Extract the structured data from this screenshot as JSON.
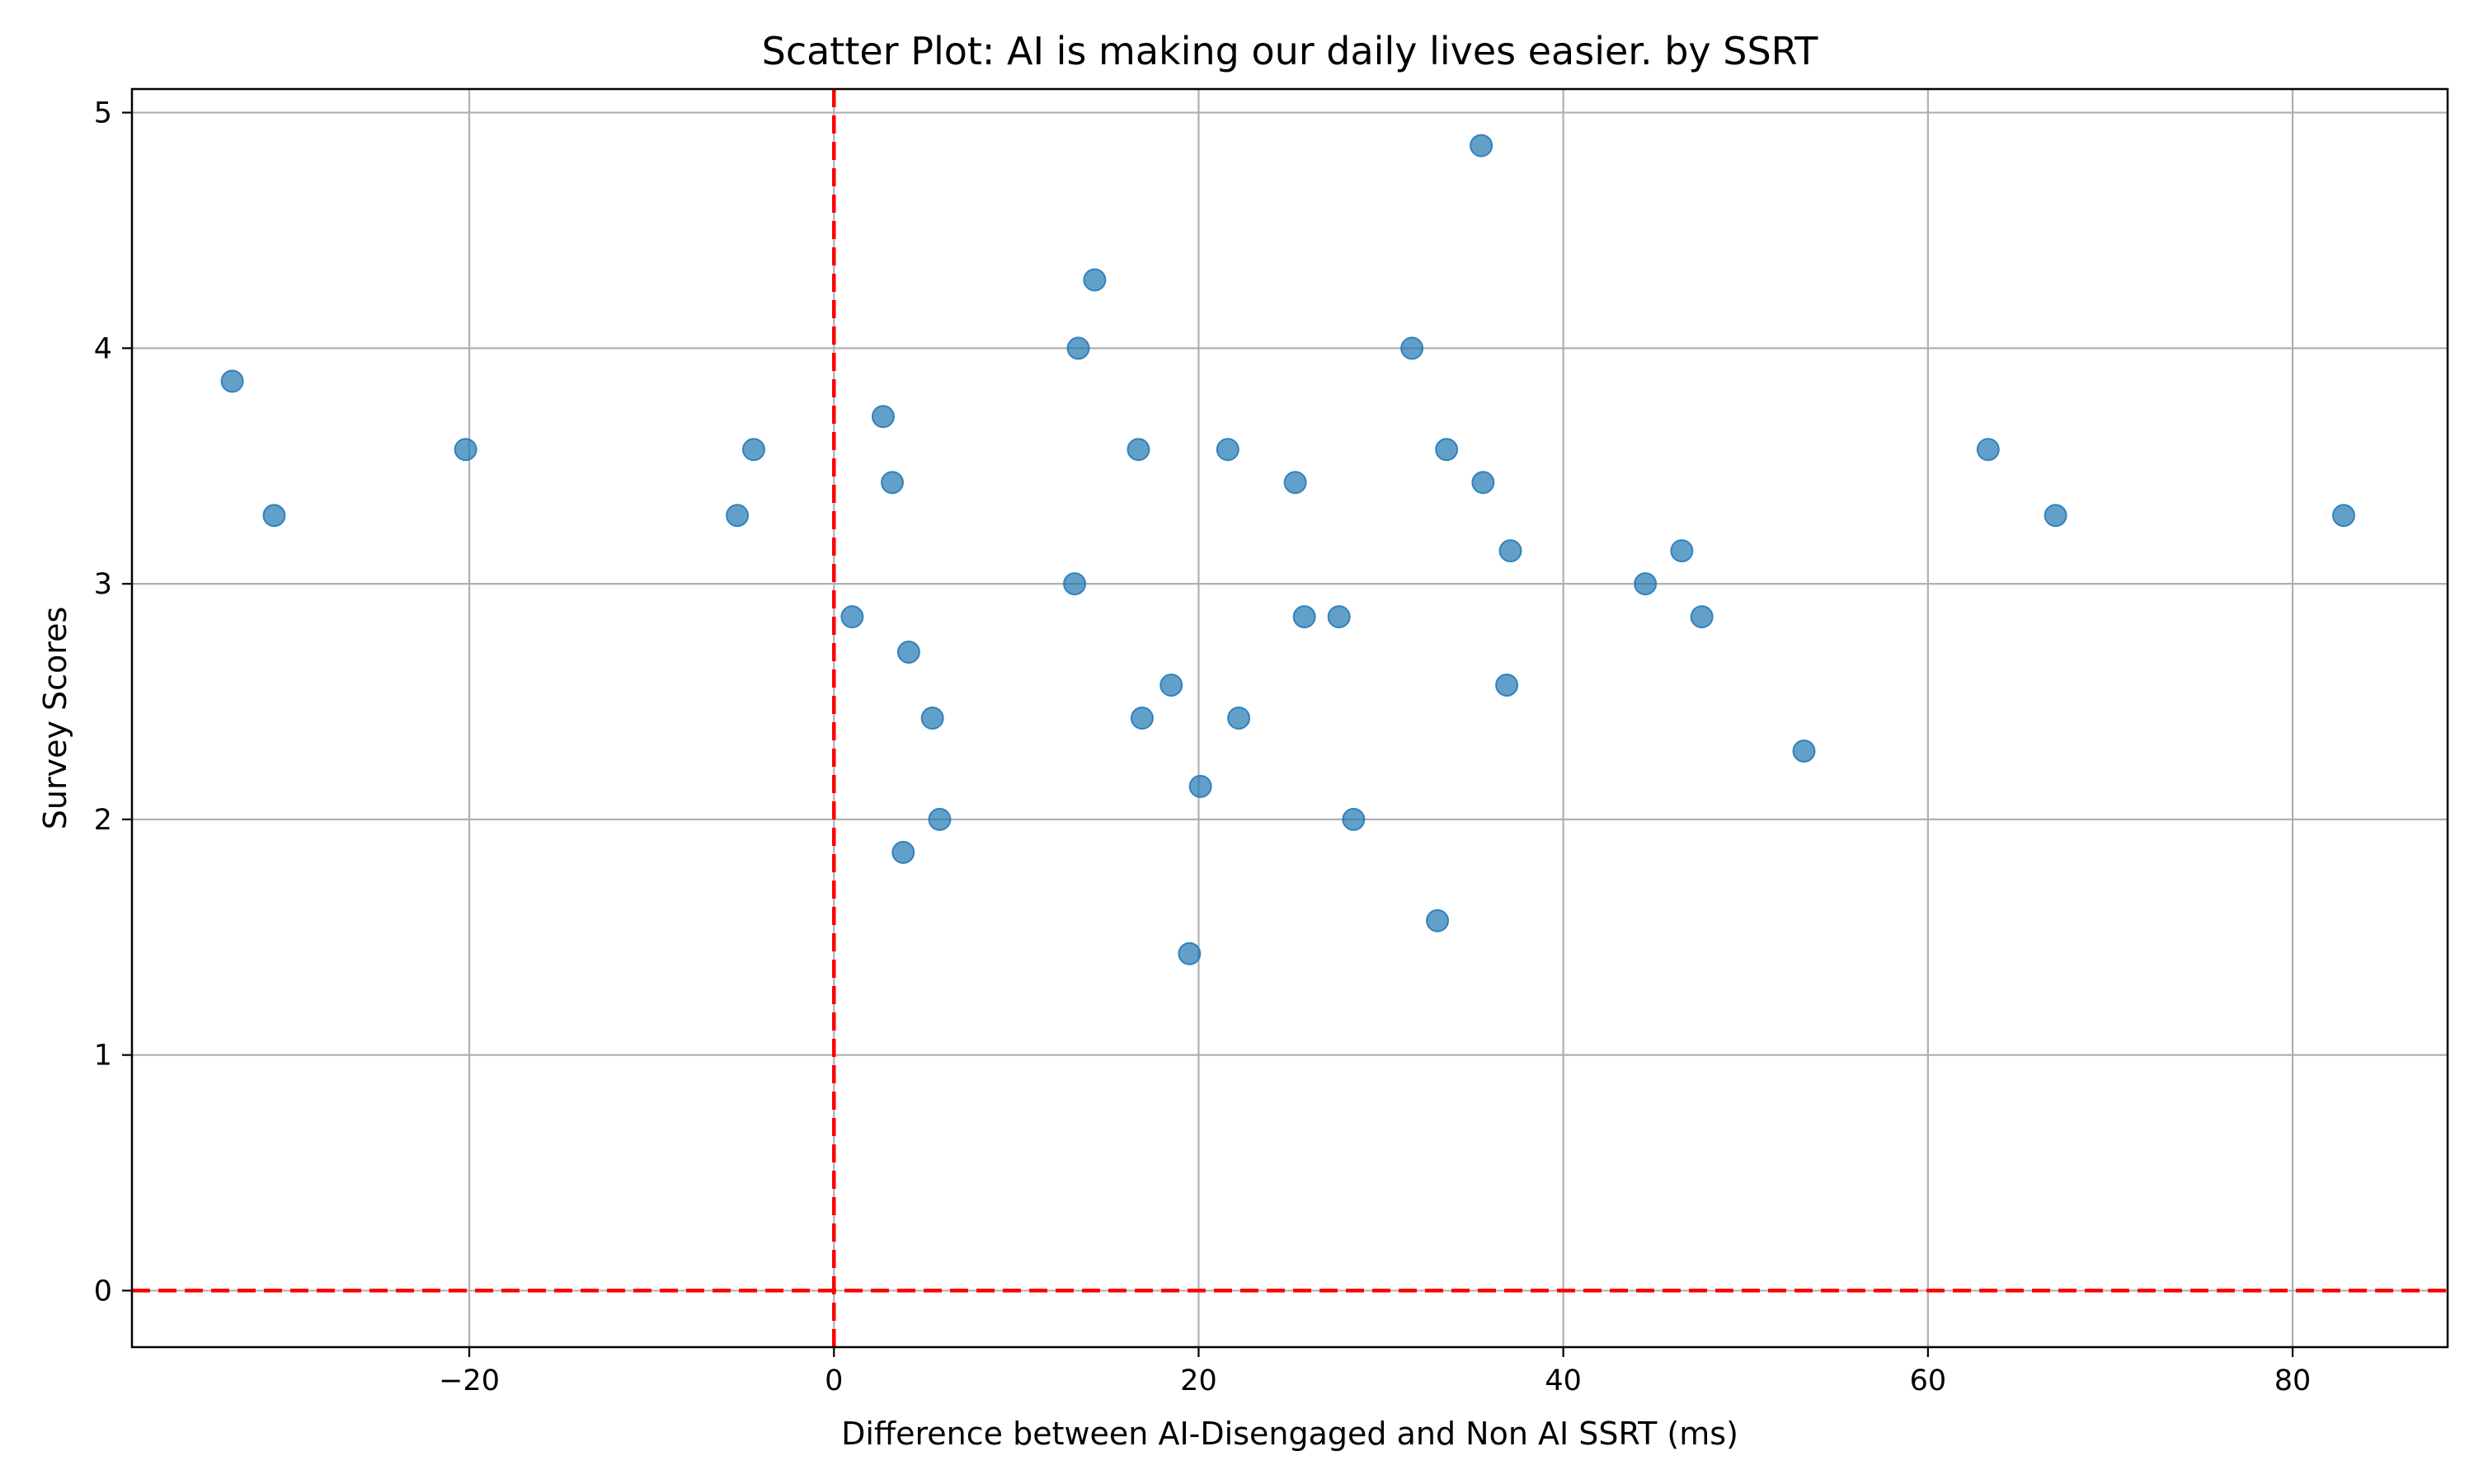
{
  "chart_data": {
    "type": "scatter",
    "title": "Scatter Plot: AI is making our daily lives easier. by SSRT",
    "xlabel": "Difference between AI-Disengaged and Non AI SSRT (ms)",
    "ylabel": "Survey Scores",
    "xlim": [
      -38.5,
      88.5
    ],
    "ylim": [
      -0.24,
      5.1
    ],
    "xticks": [
      -20,
      0,
      20,
      40,
      60,
      80
    ],
    "yticks": [
      0,
      1,
      2,
      3,
      4,
      5
    ],
    "grid": true,
    "marker_color": "#1f77b4",
    "reference_lines": [
      {
        "axis": "x",
        "value": 0,
        "color": "#ff0000",
        "style": "dashed"
      },
      {
        "axis": "y",
        "value": 0,
        "color": "#ff0000",
        "style": "dashed"
      }
    ],
    "points": [
      {
        "x": -33.0,
        "y": 3.86
      },
      {
        "x": -30.7,
        "y": 3.29
      },
      {
        "x": -20.2,
        "y": 3.57
      },
      {
        "x": -5.3,
        "y": 3.29
      },
      {
        "x": -4.4,
        "y": 3.57
      },
      {
        "x": 1.0,
        "y": 2.86
      },
      {
        "x": 2.7,
        "y": 3.71
      },
      {
        "x": 3.2,
        "y": 3.43
      },
      {
        "x": 3.8,
        "y": 1.86
      },
      {
        "x": 4.1,
        "y": 2.71
      },
      {
        "x": 5.4,
        "y": 2.43
      },
      {
        "x": 5.8,
        "y": 2.0
      },
      {
        "x": 13.2,
        "y": 3.0
      },
      {
        "x": 13.4,
        "y": 4.0
      },
      {
        "x": 14.3,
        "y": 4.29
      },
      {
        "x": 16.7,
        "y": 3.57
      },
      {
        "x": 16.9,
        "y": 2.43
      },
      {
        "x": 18.5,
        "y": 2.57
      },
      {
        "x": 19.5,
        "y": 1.43
      },
      {
        "x": 20.1,
        "y": 2.14
      },
      {
        "x": 21.6,
        "y": 3.57
      },
      {
        "x": 22.2,
        "y": 2.43
      },
      {
        "x": 25.3,
        "y": 3.43
      },
      {
        "x": 25.8,
        "y": 2.86
      },
      {
        "x": 27.7,
        "y": 2.86
      },
      {
        "x": 28.5,
        "y": 2.0
      },
      {
        "x": 31.7,
        "y": 4.0
      },
      {
        "x": 33.1,
        "y": 1.57
      },
      {
        "x": 33.6,
        "y": 3.57
      },
      {
        "x": 35.5,
        "y": 4.86
      },
      {
        "x": 35.6,
        "y": 3.43
      },
      {
        "x": 36.9,
        "y": 2.57
      },
      {
        "x": 37.1,
        "y": 3.14
      },
      {
        "x": 44.5,
        "y": 3.0
      },
      {
        "x": 46.5,
        "y": 3.14
      },
      {
        "x": 47.6,
        "y": 2.86
      },
      {
        "x": 53.2,
        "y": 2.29
      },
      {
        "x": 63.3,
        "y": 3.57
      },
      {
        "x": 67.0,
        "y": 3.29
      },
      {
        "x": 82.8,
        "y": 3.29
      }
    ]
  }
}
